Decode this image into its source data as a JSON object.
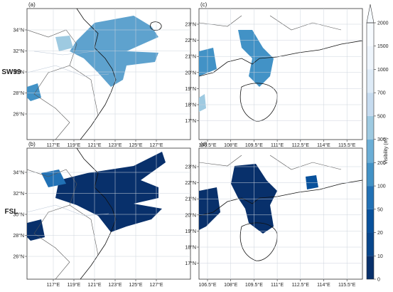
{
  "rows": [
    {
      "label": "SW99"
    },
    {
      "label": "FSL"
    }
  ],
  "panels": [
    {
      "label": "(a)",
      "xticks": [
        "117°E",
        "119°E",
        "121°E",
        "123°E",
        "125°E",
        "127°E"
      ],
      "yticks": [
        "34°N",
        "32°N",
        "30°N",
        "28°N",
        "26°N"
      ]
    },
    {
      "label": "(b)",
      "xticks": [
        "117°E",
        "119°E",
        "121°E",
        "123°E",
        "125°E",
        "127°E"
      ],
      "yticks": [
        "34°N",
        "32°N",
        "30°N",
        "28°N",
        "26°N"
      ]
    },
    {
      "label": "(c)",
      "xticks": [
        "106.5°E",
        "108°E",
        "109.5°E",
        "111°E",
        "112.5°E",
        "114°E",
        "115.5°E"
      ],
      "yticks": [
        "23°N",
        "22°N",
        "21°N",
        "20°N",
        "19°N",
        "18°N",
        "17°N"
      ]
    },
    {
      "label": "(d)",
      "xticks": [
        "106.5°E",
        "108°E",
        "109.5°E",
        "111°E",
        "112.5°E",
        "114°E",
        "115.5°E"
      ],
      "yticks": [
        "23°N",
        "22°N",
        "21°N",
        "20°N",
        "19°N",
        "18°N",
        "17°N"
      ]
    }
  ],
  "colorbar": {
    "label": "Visibility (m)",
    "ticks": [
      0,
      10,
      20,
      50,
      100,
      200,
      300,
      500,
      700,
      1000,
      1500,
      2000
    ],
    "colors": [
      "#08306b",
      "#08468c",
      "#08519c",
      "#2171b5",
      "#4292c6",
      "#6baed6",
      "#9ecae1",
      "#c6dbef",
      "#deebf7",
      "#eef5fc",
      "#f7fbff"
    ]
  }
}
